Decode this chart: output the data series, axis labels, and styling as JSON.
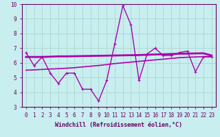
{
  "title": "",
  "xlabel": "Windchill (Refroidissement éolien,°C)",
  "background_color": "#c8eef0",
  "grid_color": "#aad8cc",
  "line_color": "#aa00aa",
  "spine_color": "#660066",
  "x": [
    0,
    1,
    2,
    3,
    4,
    5,
    6,
    7,
    8,
    9,
    10,
    11,
    12,
    13,
    14,
    15,
    16,
    17,
    18,
    19,
    20,
    21,
    22,
    23
  ],
  "line1": [
    6.7,
    5.8,
    6.4,
    5.3,
    4.6,
    5.3,
    5.3,
    4.2,
    4.2,
    3.4,
    4.8,
    7.3,
    9.9,
    8.6,
    4.8,
    6.6,
    7.0,
    6.5,
    6.5,
    6.7,
    6.8,
    5.4,
    6.4,
    6.4
  ],
  "line2": [
    6.4,
    6.4,
    6.4,
    6.42,
    6.44,
    6.44,
    6.45,
    6.46,
    6.47,
    6.48,
    6.49,
    6.5,
    6.51,
    6.52,
    6.53,
    6.55,
    6.57,
    6.58,
    6.6,
    6.62,
    6.63,
    6.64,
    6.65,
    6.5
  ],
  "line3": [
    5.5,
    5.52,
    5.55,
    5.58,
    5.6,
    5.63,
    5.67,
    5.72,
    5.77,
    5.82,
    5.88,
    5.95,
    6.0,
    6.05,
    6.1,
    6.15,
    6.2,
    6.25,
    6.3,
    6.35,
    6.38,
    6.4,
    6.42,
    6.44
  ],
  "ylim": [
    3,
    10
  ],
  "xlim": [
    -0.5,
    23.5
  ],
  "yticks": [
    3,
    4,
    5,
    6,
    7,
    8,
    9,
    10
  ],
  "xticks": [
    0,
    1,
    2,
    3,
    4,
    5,
    6,
    7,
    8,
    9,
    10,
    11,
    12,
    13,
    14,
    15,
    16,
    17,
    18,
    19,
    20,
    21,
    22,
    23
  ],
  "tick_fontsize": 5.5,
  "xlabel_fontsize": 6.0
}
